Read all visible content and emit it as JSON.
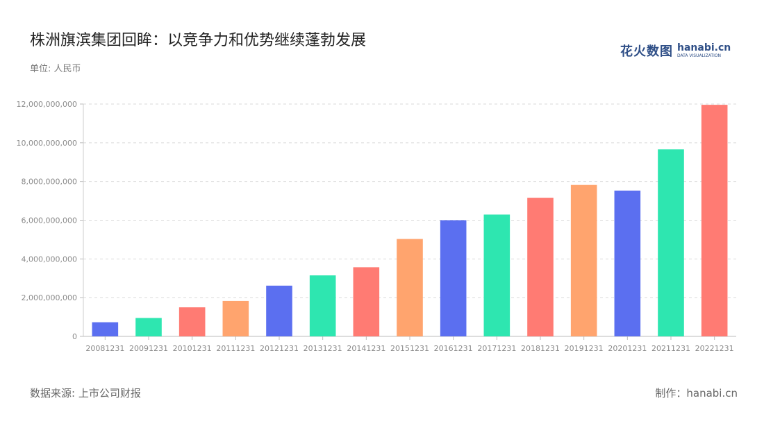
{
  "header": {
    "title": "株洲旗滨集团回眸：以竞争力和优势继续蓬勃发展",
    "unit": "单位: 人民币"
  },
  "logo": {
    "cn": "花火数图",
    "en": "hanabi.cn",
    "sub": "DATA VISUALIZATION"
  },
  "footer": {
    "source": "数据来源: 上市公司财报",
    "credit": "制作：hanabi.cn"
  },
  "chart_data": {
    "type": "bar",
    "categories": [
      "20081231",
      "20091231",
      "20101231",
      "20111231",
      "20121231",
      "20131231",
      "20141231",
      "20151231",
      "20161231",
      "20171231",
      "20181231",
      "20191231",
      "20201231",
      "20211231",
      "20221231"
    ],
    "values": [
      730000000,
      950000000,
      1500000000,
      1830000000,
      2620000000,
      3150000000,
      3570000000,
      5030000000,
      6000000000,
      6290000000,
      7160000000,
      7820000000,
      7530000000,
      9660000000,
      11960000000
    ],
    "colors": [
      "#5b6ff0",
      "#2ee6b0",
      "#ff7b73",
      "#ffa46e",
      "#5b6ff0",
      "#2ee6b0",
      "#ff7b73",
      "#ffa46e",
      "#5b6ff0",
      "#2ee6b0",
      "#ff7b73",
      "#ffa46e",
      "#5b6ff0",
      "#2ee6b0",
      "#ff7b73"
    ],
    "ylim": [
      0,
      12000000000
    ],
    "yticks": [
      0,
      2000000000,
      4000000000,
      6000000000,
      8000000000,
      10000000000,
      12000000000
    ],
    "ytick_labels": [
      "0",
      "2,000,000,000",
      "4,000,000,000",
      "6,000,000,000",
      "8,000,000,000",
      "10,000,000,000",
      "12,000,000,000"
    ],
    "grid": true,
    "legend": "none"
  }
}
